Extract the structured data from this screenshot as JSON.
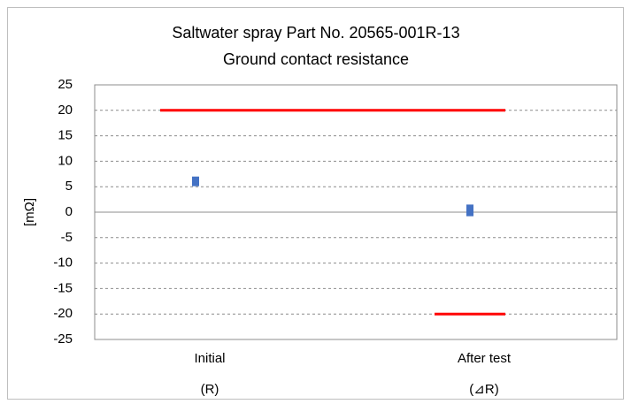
{
  "chart_data": {
    "type": "scatter",
    "title": [
      "Saltwater spray Part No. 20565-001R-13",
      "Ground contact resistance"
    ],
    "y_label": "[mΩ]",
    "categories": [
      "Initial",
      "After test"
    ],
    "category_notes": [
      "(R)",
      "(⊿R)"
    ],
    "series": [
      {
        "color": "#4472c4",
        "values": [
          6.3,
          0.8
        ]
      },
      {
        "color": "#4472c4",
        "values": [
          5.8,
          -0.1
        ]
      }
    ],
    "limits": [
      {
        "color": "#ff0000",
        "values": [
          20,
          20
        ]
      },
      {
        "color": "#ff0000",
        "values": [
          null,
          -20
        ]
      }
    ],
    "ylim": [
      -25,
      25
    ],
    "yticks": [
      -25,
      -20,
      -15,
      -10,
      -5,
      0,
      5,
      10,
      15,
      20,
      25
    ],
    "grid": true
  }
}
